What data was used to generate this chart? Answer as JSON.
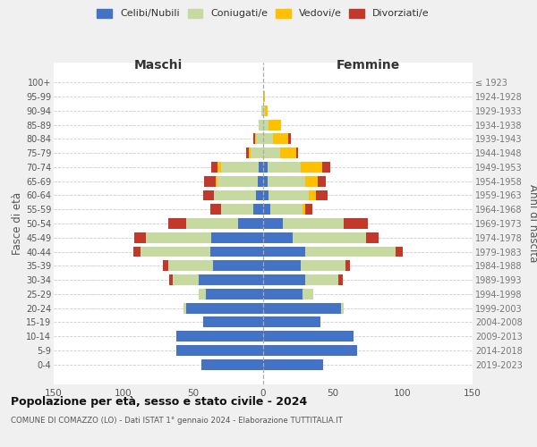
{
  "age_groups": [
    "100+",
    "95-99",
    "90-94",
    "85-89",
    "80-84",
    "75-79",
    "70-74",
    "65-69",
    "60-64",
    "55-59",
    "50-54",
    "45-49",
    "40-44",
    "35-39",
    "30-34",
    "25-29",
    "20-24",
    "15-19",
    "10-14",
    "5-9",
    "0-4"
  ],
  "birth_years": [
    "≤ 1923",
    "1924-1928",
    "1929-1933",
    "1934-1938",
    "1939-1943",
    "1944-1948",
    "1949-1953",
    "1954-1958",
    "1959-1963",
    "1964-1968",
    "1969-1973",
    "1974-1978",
    "1979-1983",
    "1984-1988",
    "1989-1993",
    "1994-1998",
    "1999-2003",
    "2004-2008",
    "2009-2013",
    "2014-2018",
    "2019-2023"
  ],
  "male": {
    "celibi": [
      0,
      0,
      0,
      0,
      0,
      0,
      3,
      4,
      5,
      7,
      18,
      37,
      38,
      36,
      46,
      41,
      55,
      43,
      62,
      62,
      44
    ],
    "coniugati": [
      0,
      0,
      1,
      3,
      5,
      9,
      27,
      29,
      30,
      23,
      37,
      47,
      50,
      32,
      19,
      5,
      2,
      0,
      0,
      0,
      0
    ],
    "vedovi": [
      0,
      0,
      0,
      0,
      1,
      1,
      3,
      1,
      0,
      0,
      0,
      0,
      0,
      0,
      0,
      0,
      0,
      0,
      0,
      0,
      0
    ],
    "divorziati": [
      0,
      0,
      0,
      0,
      1,
      2,
      4,
      8,
      8,
      8,
      13,
      8,
      5,
      4,
      2,
      0,
      0,
      0,
      0,
      0,
      0
    ]
  },
  "female": {
    "nubili": [
      0,
      0,
      0,
      0,
      0,
      0,
      3,
      3,
      4,
      5,
      14,
      21,
      30,
      27,
      30,
      28,
      56,
      41,
      65,
      67,
      43
    ],
    "coniugate": [
      0,
      0,
      1,
      4,
      7,
      12,
      24,
      27,
      29,
      23,
      44,
      53,
      65,
      32,
      24,
      8,
      2,
      0,
      0,
      0,
      0
    ],
    "vedove": [
      0,
      1,
      2,
      9,
      11,
      12,
      15,
      9,
      5,
      2,
      0,
      0,
      0,
      0,
      0,
      0,
      0,
      0,
      0,
      0,
      0
    ],
    "divorziate": [
      0,
      0,
      0,
      0,
      2,
      1,
      6,
      6,
      8,
      5,
      17,
      9,
      5,
      3,
      3,
      0,
      0,
      0,
      0,
      0,
      0
    ]
  },
  "colors": {
    "celibi": "#4472c4",
    "coniugati": "#c5d9a0",
    "vedovi": "#ffc000",
    "divorziati": "#c0392b"
  },
  "xlim": 150,
  "title": "Popolazione per età, sesso e stato civile - 2024",
  "subtitle": "COMUNE DI COMAZZO (LO) - Dati ISTAT 1° gennaio 2024 - Elaborazione TUTTITALIA.IT",
  "ylabel_left": "Fasce di età",
  "ylabel_right": "Anni di nascita",
  "xlabel_left": "Maschi",
  "xlabel_right": "Femmine",
  "bg_color": "#f0f0f0",
  "plot_bg": "#ffffff"
}
